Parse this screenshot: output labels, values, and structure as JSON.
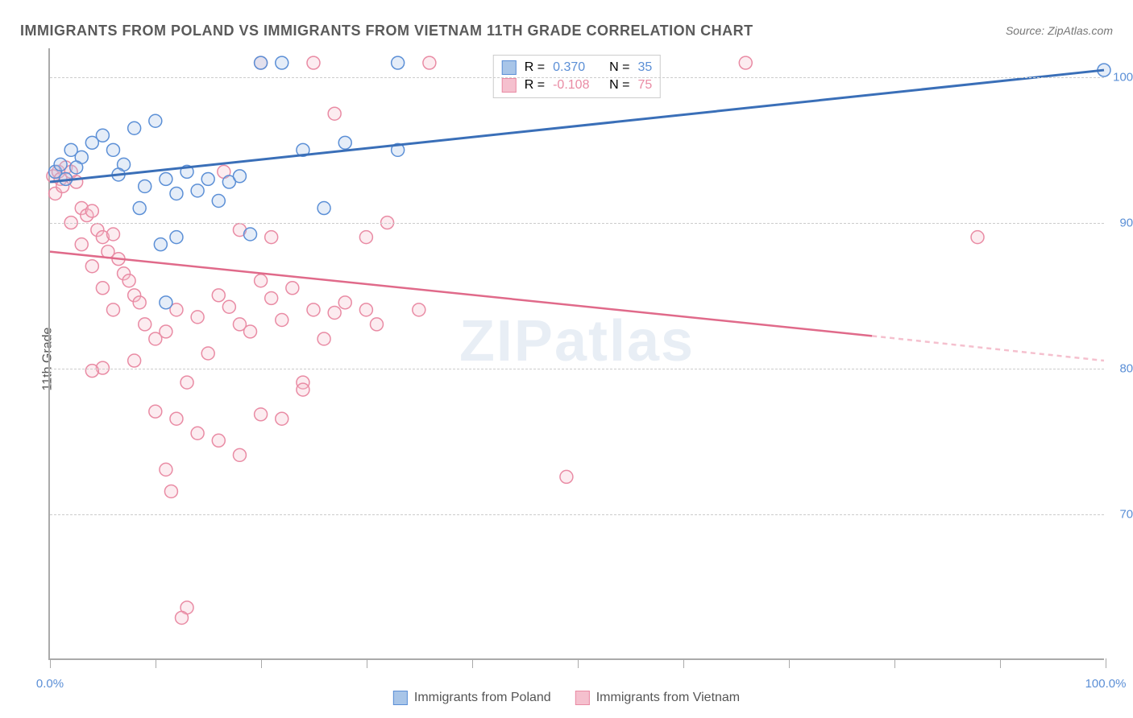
{
  "title": "IMMIGRANTS FROM POLAND VS IMMIGRANTS FROM VIETNAM 11TH GRADE CORRELATION CHART",
  "source": "Source: ZipAtlas.com",
  "y_axis_label": "11th Grade",
  "watermark_prefix": "ZIP",
  "watermark_suffix": "atlas",
  "chart": {
    "type": "scatter",
    "xlim": [
      0,
      100
    ],
    "ylim": [
      60,
      102
    ],
    "x_tick_labels": [
      "0.0%",
      "100.0%"
    ],
    "x_tick_positions": [
      0,
      100
    ],
    "x_minor_ticks": [
      0,
      10,
      20,
      30,
      40,
      50,
      60,
      70,
      80,
      90,
      100
    ],
    "y_tick_labels": [
      "70.0%",
      "80.0%",
      "90.0%",
      "100.0%"
    ],
    "y_tick_positions": [
      70,
      80,
      90,
      100
    ],
    "grid_color": "#cccccc",
    "axis_color": "#aaaaaa",
    "background_color": "#ffffff",
    "marker_radius": 8,
    "marker_stroke_width": 1.5,
    "marker_fill_opacity": 0.3,
    "line_width_blue": 3,
    "line_width_pink": 2.5,
    "series": {
      "poland": {
        "label": "Immigrants from Poland",
        "color_fill": "#a8c5e8",
        "color_stroke": "#5b8fd6",
        "line_color": "#3a6fb8",
        "R_label": "R =",
        "R_value": "0.370",
        "N_label": "N =",
        "N_value": "35",
        "trend_line": {
          "x1": 0,
          "y1": 92.8,
          "x2": 100,
          "y2": 100.5
        },
        "points": [
          [
            0.5,
            93.5
          ],
          [
            1,
            94
          ],
          [
            2,
            95
          ],
          [
            1.5,
            93
          ],
          [
            3,
            94.5
          ],
          [
            4,
            95.5
          ],
          [
            5,
            96
          ],
          [
            2.5,
            93.8
          ],
          [
            6,
            95
          ],
          [
            8,
            96.5
          ],
          [
            10,
            97
          ],
          [
            7,
            94
          ],
          [
            9,
            92.5
          ],
          [
            11,
            93
          ],
          [
            12,
            92
          ],
          [
            13,
            93.5
          ],
          [
            10.5,
            88.5
          ],
          [
            12,
            89
          ],
          [
            14,
            92.2
          ],
          [
            15,
            93
          ],
          [
            16,
            91.5
          ],
          [
            17,
            92.8
          ],
          [
            18,
            93.2
          ],
          [
            20,
            101
          ],
          [
            22,
            101
          ],
          [
            24,
            95
          ],
          [
            33,
            101
          ],
          [
            33,
            95
          ],
          [
            26,
            91
          ],
          [
            28,
            95.5
          ],
          [
            11,
            84.5
          ],
          [
            19,
            89.2
          ],
          [
            8.5,
            91
          ],
          [
            6.5,
            93.3
          ],
          [
            100,
            100.5
          ]
        ]
      },
      "vietnam": {
        "label": "Immigrants from Vietnam",
        "color_fill": "#f5c0ce",
        "color_stroke": "#e98ba4",
        "line_color": "#e06a8a",
        "R_label": "R =",
        "R_value": "-0.108",
        "N_label": "N =",
        "N_value": "75",
        "trend_line_solid": {
          "x1": 0,
          "y1": 88,
          "x2": 78,
          "y2": 82.2
        },
        "trend_line_dashed": {
          "x1": 78,
          "y1": 82.2,
          "x2": 100,
          "y2": 80.5
        },
        "points": [
          [
            0.3,
            93.2
          ],
          [
            0.8,
            93.5
          ],
          [
            1,
            93
          ],
          [
            1.5,
            93.8
          ],
          [
            2,
            93.5
          ],
          [
            0.5,
            92
          ],
          [
            1.2,
            92.5
          ],
          [
            2.5,
            92.8
          ],
          [
            3,
            91
          ],
          [
            3.5,
            90.5
          ],
          [
            2,
            90
          ],
          [
            4,
            90.8
          ],
          [
            4.5,
            89.5
          ],
          [
            5,
            89
          ],
          [
            3,
            88.5
          ],
          [
            5.5,
            88
          ],
          [
            6,
            89.2
          ],
          [
            4,
            87
          ],
          [
            6.5,
            87.5
          ],
          [
            7,
            86.5
          ],
          [
            5,
            85.5
          ],
          [
            7.5,
            86
          ],
          [
            8,
            85
          ],
          [
            6,
            84
          ],
          [
            8.5,
            84.5
          ],
          [
            5,
            80
          ],
          [
            4,
            79.8
          ],
          [
            9,
            83
          ],
          [
            8,
            80.5
          ],
          [
            10,
            82
          ],
          [
            12,
            84
          ],
          [
            11,
            82.5
          ],
          [
            14,
            83.5
          ],
          [
            13,
            79
          ],
          [
            12,
            76.5
          ],
          [
            15,
            81
          ],
          [
            10,
            77
          ],
          [
            16,
            85
          ],
          [
            17,
            84.2
          ],
          [
            18,
            83
          ],
          [
            14,
            75.5
          ],
          [
            19,
            82.5
          ],
          [
            20,
            86
          ],
          [
            21,
            84.8
          ],
          [
            22,
            83.3
          ],
          [
            16,
            75
          ],
          [
            23,
            85.5
          ],
          [
            24,
            79
          ],
          [
            25,
            84
          ],
          [
            18,
            74
          ],
          [
            20,
            76.8
          ],
          [
            26,
            82
          ],
          [
            27,
            83.8
          ],
          [
            22,
            76.5
          ],
          [
            28,
            84.5
          ],
          [
            11,
            73
          ],
          [
            24,
            78.5
          ],
          [
            30,
            84
          ],
          [
            11.5,
            71.5
          ],
          [
            13,
            63.5
          ],
          [
            12.5,
            62.8
          ],
          [
            31,
            83
          ],
          [
            18,
            89.5
          ],
          [
            20,
            101
          ],
          [
            21,
            89
          ],
          [
            25,
            101
          ],
          [
            27,
            97.5
          ],
          [
            30,
            89
          ],
          [
            32,
            90
          ],
          [
            35,
            84
          ],
          [
            36,
            101
          ],
          [
            49,
            72.5
          ],
          [
            66,
            101
          ],
          [
            88,
            89
          ],
          [
            16.5,
            93.5
          ]
        ]
      }
    }
  },
  "colors": {
    "text_primary": "#5a5a5a",
    "text_secondary": "#777777",
    "tick_label": "#5b8fd6"
  }
}
